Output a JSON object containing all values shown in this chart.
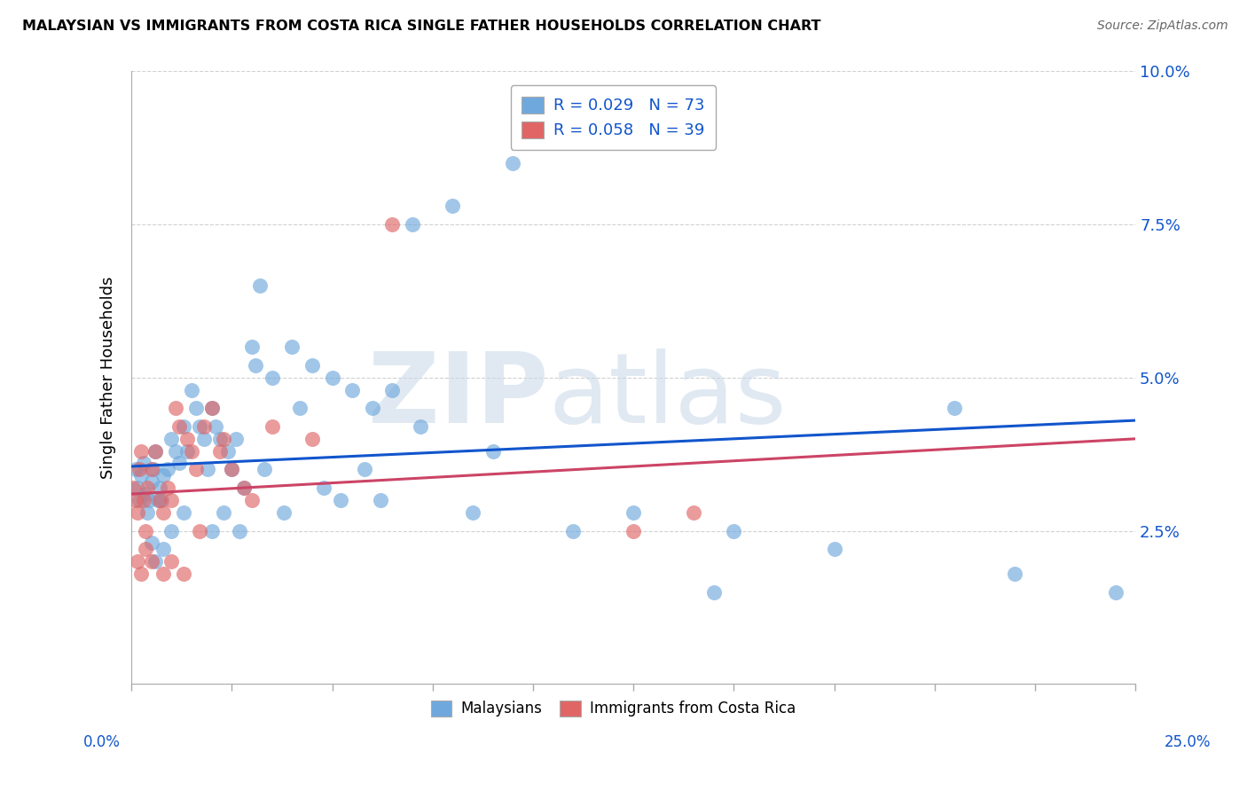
{
  "title": "MALAYSIAN VS IMMIGRANTS FROM COSTA RICA SINGLE FATHER HOUSEHOLDS CORRELATION CHART",
  "source": "Source: ZipAtlas.com",
  "ylabel": "Single Father Households",
  "xlim": [
    0.0,
    25.0
  ],
  "ylim": [
    0.0,
    10.0
  ],
  "ytick_vals": [
    0.0,
    2.5,
    5.0,
    7.5,
    10.0
  ],
  "ytick_labels": [
    "",
    "2.5%",
    "5.0%",
    "7.5%",
    "10.0%"
  ],
  "color_malaysian": "#6fa8dc",
  "color_costarica": "#e06666",
  "color_trendline_malaysian": "#1155cc",
  "color_trendline_costarica": "#cc4466",
  "malaysian_x": [
    0.1,
    0.15,
    0.2,
    0.25,
    0.3,
    0.35,
    0.4,
    0.45,
    0.5,
    0.55,
    0.6,
    0.65,
    0.7,
    0.75,
    0.8,
    0.9,
    1.0,
    1.1,
    1.2,
    1.3,
    1.5,
    1.6,
    1.7,
    1.8,
    2.0,
    2.1,
    2.2,
    2.4,
    2.5,
    2.6,
    3.0,
    3.1,
    3.5,
    4.0,
    4.5,
    5.0,
    5.5,
    6.0,
    7.0,
    8.0,
    9.5,
    10.0,
    1.4,
    1.9,
    2.8,
    3.2,
    4.2,
    5.2,
    6.5,
    14.5,
    2.0,
    2.3,
    2.7,
    3.8,
    5.8,
    7.2,
    9.0,
    12.5,
    15.0,
    20.5,
    0.5,
    0.6,
    0.8,
    1.0,
    1.3,
    3.3,
    4.8,
    6.2,
    8.5,
    11.0,
    17.5,
    22.0,
    24.5
  ],
  "malaysian_y": [
    3.5,
    3.2,
    3.0,
    3.4,
    3.6,
    3.1,
    2.8,
    3.0,
    3.3,
    3.5,
    3.8,
    3.0,
    3.2,
    3.0,
    3.4,
    3.5,
    4.0,
    3.8,
    3.6,
    4.2,
    4.8,
    4.5,
    4.2,
    4.0,
    4.5,
    4.2,
    4.0,
    3.8,
    3.5,
    4.0,
    5.5,
    5.2,
    5.0,
    5.5,
    5.2,
    5.0,
    4.8,
    4.5,
    7.5,
    7.8,
    8.5,
    9.0,
    3.8,
    3.5,
    3.2,
    6.5,
    4.5,
    3.0,
    4.8,
    1.5,
    2.5,
    2.8,
    2.5,
    2.8,
    3.5,
    4.2,
    3.8,
    2.8,
    2.5,
    4.5,
    2.3,
    2.0,
    2.2,
    2.5,
    2.8,
    3.5,
    3.2,
    3.0,
    2.8,
    2.5,
    2.2,
    1.8,
    1.5
  ],
  "costarica_x": [
    0.05,
    0.1,
    0.15,
    0.2,
    0.25,
    0.3,
    0.35,
    0.4,
    0.5,
    0.6,
    0.7,
    0.8,
    0.9,
    1.0,
    1.1,
    1.2,
    1.4,
    1.5,
    1.6,
    1.8,
    2.0,
    2.2,
    2.5,
    2.8,
    3.0,
    0.15,
    0.25,
    0.35,
    0.5,
    0.8,
    1.0,
    1.3,
    1.7,
    2.3,
    3.5,
    4.5,
    6.5,
    12.5,
    14.0
  ],
  "costarica_y": [
    3.2,
    3.0,
    2.8,
    3.5,
    3.8,
    3.0,
    2.5,
    3.2,
    3.5,
    3.8,
    3.0,
    2.8,
    3.2,
    3.0,
    4.5,
    4.2,
    4.0,
    3.8,
    3.5,
    4.2,
    4.5,
    3.8,
    3.5,
    3.2,
    3.0,
    2.0,
    1.8,
    2.2,
    2.0,
    1.8,
    2.0,
    1.8,
    2.5,
    4.0,
    4.2,
    4.0,
    7.5,
    2.5,
    2.8
  ],
  "trendline_m_x0": 0.0,
  "trendline_m_x1": 25.0,
  "trendline_m_y0": 3.55,
  "trendline_m_y1": 4.3,
  "trendline_c_x0": 0.0,
  "trendline_c_x1": 25.0,
  "trendline_c_y0": 3.1,
  "trendline_c_y1": 4.0
}
